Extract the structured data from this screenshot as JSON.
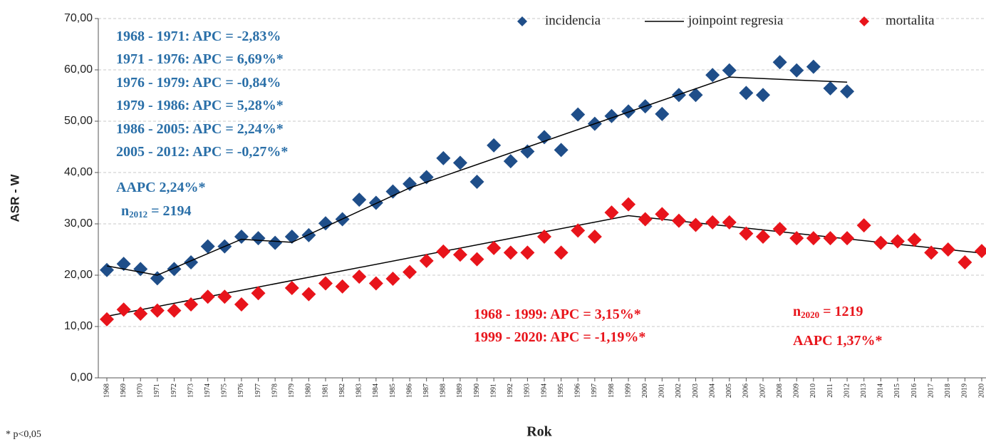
{
  "chart_data": {
    "type": "scatter",
    "x_label": "Rok",
    "y_label": "ASR - W",
    "footnote": "* p<0,05",
    "x": [
      1968,
      1969,
      1970,
      1971,
      1972,
      1973,
      1974,
      1975,
      1976,
      1977,
      1978,
      1979,
      1980,
      1981,
      1982,
      1983,
      1984,
      1985,
      1986,
      1987,
      1988,
      1989,
      1990,
      1991,
      1992,
      1993,
      1994,
      1995,
      1996,
      1997,
      1998,
      1999,
      2000,
      2001,
      2002,
      2003,
      2004,
      2005,
      2006,
      2007,
      2008,
      2009,
      2010,
      2011,
      2012,
      2013,
      2014,
      2015,
      2016,
      2017,
      2018,
      2019,
      2020
    ],
    "xlim": [
      1967.5,
      2020.5
    ],
    "ylim": [
      0,
      70
    ],
    "yticks": [
      {
        "value": 0,
        "label": "0,00"
      },
      {
        "value": 10,
        "label": "10,00"
      },
      {
        "value": 20,
        "label": "20,00"
      },
      {
        "value": 30,
        "label": "30,00"
      },
      {
        "value": 40,
        "label": "40,00"
      },
      {
        "value": 50,
        "label": "50,00"
      },
      {
        "value": 60,
        "label": "60,00"
      },
      {
        "value": 70,
        "label": "70,00"
      }
    ],
    "grid": true,
    "series": [
      {
        "name": "incidencia",
        "color": "#1f4e89",
        "marker": "diamond",
        "values": [
          21.0,
          22.2,
          21.2,
          19.4,
          21.2,
          22.5,
          25.6,
          25.6,
          27.5,
          27.2,
          26.3,
          27.5,
          27.8,
          30.1,
          30.9,
          34.7,
          34.1,
          36.3,
          37.8,
          39.1,
          42.8,
          41.9,
          38.2,
          45.3,
          42.2,
          44.1,
          46.9,
          44.4,
          51.3,
          49.5,
          51.0,
          51.9,
          52.9,
          51.4,
          55.1,
          55.1,
          59.0,
          59.9,
          55.5,
          55.1,
          61.5,
          59.9,
          60.6,
          56.4,
          55.8,
          null,
          null,
          null,
          null,
          null,
          null,
          null,
          null
        ]
      },
      {
        "name": "joinpoint regresia",
        "color": "#000000",
        "marker": "line",
        "x": [
          1968,
          1971,
          1976,
          1979,
          1986,
          2005,
          2012,
          null,
          1968,
          1999,
          2020
        ],
        "values": [
          21.8,
          20.0,
          27.0,
          26.4,
          37.0,
          58.6,
          57.6,
          null,
          12.0,
          31.6,
          24.3
        ]
      },
      {
        "name": "mortalita",
        "color": "#e8141b",
        "marker": "diamond",
        "values": [
          11.4,
          13.3,
          12.5,
          13.1,
          13.1,
          14.3,
          15.8,
          15.8,
          14.3,
          16.5,
          null,
          17.5,
          16.3,
          18.4,
          17.8,
          19.7,
          18.4,
          19.3,
          20.6,
          22.8,
          24.6,
          24.0,
          23.1,
          25.3,
          24.4,
          24.4,
          27.5,
          24.4,
          28.7,
          27.5,
          32.2,
          33.8,
          30.9,
          31.9,
          30.6,
          29.8,
          30.3,
          30.3,
          28.1,
          27.5,
          29.0,
          27.2,
          27.2,
          27.2,
          27.2,
          29.7,
          26.3,
          26.6,
          26.9,
          24.4,
          25.0,
          22.5,
          24.7
        ]
      }
    ],
    "annotations": [
      {
        "text": "1968 - 1971: APC = -2,83%",
        "color": "#2a6fa8"
      },
      {
        "text": "1971 - 1976: APC = 6,69%*",
        "color": "#2a6fa8"
      },
      {
        "text": "1976 - 1979: APC = -0,84%",
        "color": "#2a6fa8"
      },
      {
        "text": "1979 - 1986: APC = 5,28%*",
        "color": "#2a6fa8"
      },
      {
        "text": "1986 - 2005: APC = 2,24%*",
        "color": "#2a6fa8"
      },
      {
        "text": "2005 - 2012: APC = -0,27%*",
        "color": "#2a6fa8"
      },
      {
        "text": "AAPC 2,24%*",
        "color": "#2a6fa8"
      },
      {
        "text": "n",
        "sub": "2012",
        "after": " = 2194",
        "color": "#2a6fa8"
      },
      {
        "text": "1968 - 1999: APC = 3,15%*",
        "color": "#e8141b"
      },
      {
        "text": "1999 - 2020: APC = -1,19%*",
        "color": "#e8141b"
      },
      {
        "text": "n",
        "sub": "2020",
        "after": " = 1219",
        "color": "#e8141b"
      },
      {
        "text": "AAPC 1,37%*",
        "color": "#e8141b"
      }
    ]
  }
}
